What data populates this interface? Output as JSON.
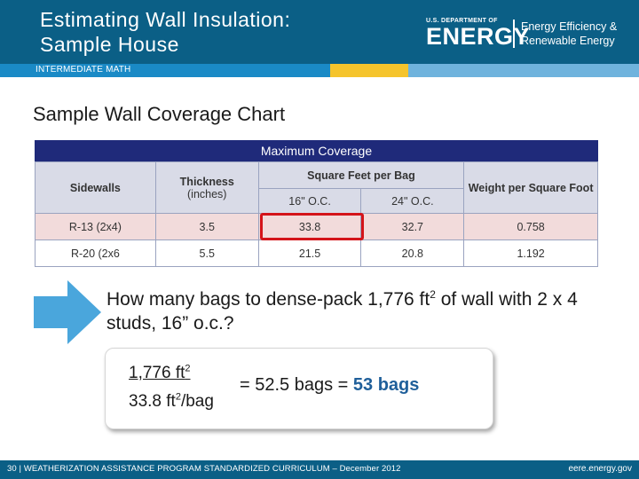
{
  "header": {
    "title_line1": "Estimating Wall Insulation:",
    "title_line2": "Sample House",
    "logo_small": "U.S. DEPARTMENT OF",
    "logo_big": "ENERGY",
    "logo_right_line1": "Energy Efficiency &",
    "logo_right_line2": "Renewable Energy"
  },
  "tag": "INTERMEDIATE MATH",
  "slide_title": "Sample Wall Coverage Chart",
  "table": {
    "caption": "Maximum Coverage",
    "col_sidewalls": "Sidewalls",
    "col_thickness": "Thickness",
    "col_thickness_unit": "(inches)",
    "col_sqft": "Square Feet per Bag",
    "col_16": "16\" O.C.",
    "col_24": "24\" O.C.",
    "col_weight": "Weight per Square Foot",
    "rows": [
      {
        "sidewall": "R-13 (2x4)",
        "thickness": "3.5",
        "oc16": "33.8",
        "oc24": "32.7",
        "weight": "0.758"
      },
      {
        "sidewall": "R-20 (2x6",
        "thickness": "5.5",
        "oc16": "21.5",
        "oc24": "20.8",
        "weight": "1.192"
      }
    ]
  },
  "question": {
    "part1": "How many bags to dense-pack 1,776 ft",
    "sup": "2",
    "part2": " of wall with 2 x 4 studs, 16” o.c.?"
  },
  "formula": {
    "numerator": "1,776 ft",
    "numerator_sup": "2",
    "denominator_a": "33.8 ft",
    "denominator_sup": "2",
    "denominator_b": "/bag",
    "equation": "= 52.5 bags = ",
    "answer": "53 bags"
  },
  "footer": {
    "left": "30 | WEATHERIZATION ASSISTANCE PROGRAM STANDARDIZED CURRICULUM – December 2012",
    "right": "eere.energy.gov"
  },
  "colors": {
    "header_blue": "#0b5f86",
    "tag_blue": "#1a8ac6",
    "table_header": "#1f2a7a",
    "highlight_red": "#d4141a",
    "arrow_blue": "#4aa6dc",
    "answer_blue": "#1f5f9a"
  }
}
